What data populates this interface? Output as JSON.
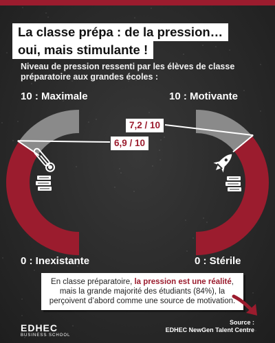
{
  "title_line1": "La classe prépa : de la pression…",
  "title_line2": "oui, mais stimulante !",
  "subtitle": "Niveau de pression ressenti par les élèves de classe préparatoire aux grandes écoles :",
  "chart_data": [
    {
      "type": "gauge",
      "scale_max_label": "10 : Maximale",
      "scale_min_label": "0 : Inexistante",
      "value": 6.9,
      "value_label": "6,9 / 10",
      "range": [
        0,
        10
      ],
      "fill_color": "#9b1c2e",
      "track_color": "#8a8a8a",
      "icons": [
        "thermometer-icon",
        "books-icon"
      ]
    },
    {
      "type": "gauge",
      "scale_max_label": "10 : Motivante",
      "scale_min_label": "0 : Stérile",
      "value": 7.2,
      "value_label": "7,2 / 10",
      "range": [
        0,
        10
      ],
      "fill_color": "#9b1c2e",
      "track_color": "#8a8a8a",
      "icons": [
        "rocket-icon",
        "books-icon"
      ]
    }
  ],
  "note": {
    "part1": "En classe préparatoire, ",
    "bold": "la pression est une réalité",
    "part2": ", mais la grande majorité des étudiants (84%), la perçoivent d’abord comme une source de motivation."
  },
  "logo": {
    "main": "EDHEC",
    "sub": "BUSINESS SCHOOL"
  },
  "source": {
    "label": "Source :",
    "text": "EDHEC NewGen Talent Centre"
  },
  "colors": {
    "accent": "#9b1c2e",
    "background": "#2b2b2b"
  }
}
